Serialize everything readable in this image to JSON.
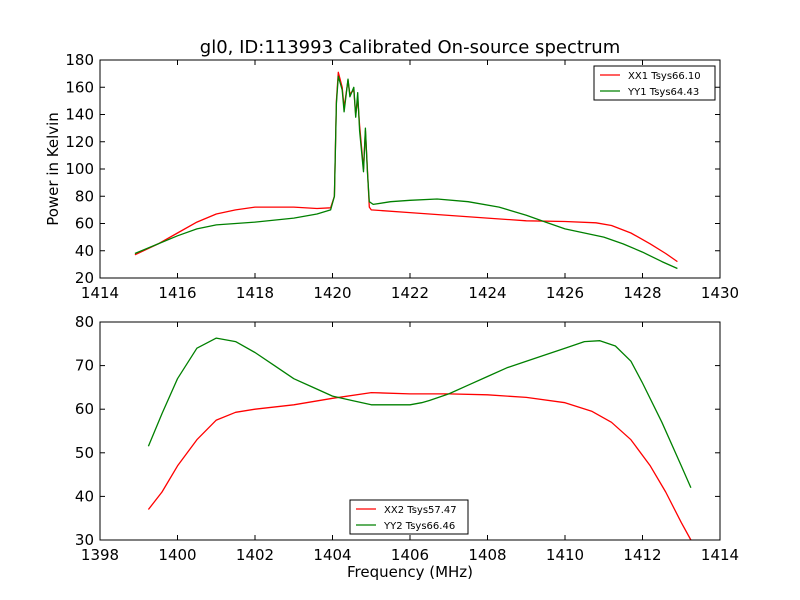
{
  "figure": {
    "title": "gl0, ID:113993 Calibrated On-source spectrum"
  },
  "chart_data": [
    {
      "type": "line",
      "title": "gl0, ID:113993 Calibrated On-source spectrum",
      "xlabel": "",
      "ylabel": "Power in Kelvin",
      "xlim": [
        1414,
        1430
      ],
      "ylim": [
        20,
        180
      ],
      "xticks": [
        1414,
        1416,
        1418,
        1420,
        1422,
        1424,
        1426,
        1428,
        1430
      ],
      "yticks": [
        20,
        40,
        60,
        80,
        100,
        120,
        140,
        160,
        180
      ],
      "legend_position": "top-right",
      "series": [
        {
          "name": "XX1 Tsys66.10",
          "color": "#ff0000",
          "points": [
            [
              1414.9,
              37
            ],
            [
              1415.5,
              45
            ],
            [
              1416,
              53
            ],
            [
              1416.5,
              61
            ],
            [
              1417,
              67
            ],
            [
              1417.5,
              70
            ],
            [
              1418,
              72
            ],
            [
              1419,
              72
            ],
            [
              1419.6,
              71
            ],
            [
              1419.95,
              71.5
            ],
            [
              1420.05,
              80
            ],
            [
              1420.1,
              150
            ],
            [
              1420.15,
              171
            ],
            [
              1420.25,
              160
            ],
            [
              1420.3,
              145
            ],
            [
              1420.4,
              165
            ],
            [
              1420.45,
              155
            ],
            [
              1420.55,
              158
            ],
            [
              1420.6,
              140
            ],
            [
              1420.65,
              152
            ],
            [
              1420.7,
              132
            ],
            [
              1420.8,
              100
            ],
            [
              1420.85,
              128
            ],
            [
              1420.9,
              100
            ],
            [
              1420.95,
              72
            ],
            [
              1421,
              70
            ],
            [
              1422,
              68
            ],
            [
              1424,
              64
            ],
            [
              1425,
              62
            ],
            [
              1426,
              61.5
            ],
            [
              1426.8,
              60.5
            ],
            [
              1427.2,
              58.5
            ],
            [
              1427.7,
              53
            ],
            [
              1428.2,
              45
            ],
            [
              1428.6,
              38
            ],
            [
              1428.9,
              32
            ]
          ]
        },
        {
          "name": "YY1 Tsys64.43",
          "color": "#008000",
          "points": [
            [
              1414.9,
              38
            ],
            [
              1415.5,
              45
            ],
            [
              1416,
              51
            ],
            [
              1416.5,
              56
            ],
            [
              1417,
              59
            ],
            [
              1418,
              61
            ],
            [
              1419,
              64
            ],
            [
              1419.6,
              67
            ],
            [
              1419.95,
              70
            ],
            [
              1420.05,
              80
            ],
            [
              1420.1,
              148
            ],
            [
              1420.15,
              168
            ],
            [
              1420.25,
              158
            ],
            [
              1420.3,
              142
            ],
            [
              1420.4,
              166
            ],
            [
              1420.45,
              153
            ],
            [
              1420.55,
              160
            ],
            [
              1420.6,
              138
            ],
            [
              1420.65,
              156
            ],
            [
              1420.7,
              128
            ],
            [
              1420.8,
              98
            ],
            [
              1420.85,
              130
            ],
            [
              1420.9,
              98
            ],
            [
              1420.95,
              76
            ],
            [
              1421.05,
              74
            ],
            [
              1421.5,
              76
            ],
            [
              1422,
              77
            ],
            [
              1422.7,
              78
            ],
            [
              1423.5,
              76
            ],
            [
              1424.3,
              72
            ],
            [
              1425,
              66
            ],
            [
              1425.5,
              61
            ],
            [
              1426,
              56
            ],
            [
              1426.5,
              53
            ],
            [
              1427,
              50
            ],
            [
              1427.5,
              45
            ],
            [
              1428,
              39
            ],
            [
              1428.5,
              32
            ],
            [
              1428.9,
              27
            ]
          ]
        }
      ]
    },
    {
      "type": "line",
      "title": "",
      "xlabel": "Frequency (MHz)",
      "ylabel": "",
      "xlim": [
        1398,
        1414
      ],
      "ylim": [
        30,
        80
      ],
      "xticks": [
        1398,
        1400,
        1402,
        1404,
        1406,
        1408,
        1410,
        1412,
        1414
      ],
      "yticks": [
        30,
        40,
        50,
        60,
        70,
        80
      ],
      "legend_position": "lower-center",
      "series": [
        {
          "name": "XX2 Tsys57.47",
          "color": "#ff0000",
          "points": [
            [
              1399.25,
              37
            ],
            [
              1399.6,
              41
            ],
            [
              1400,
              47
            ],
            [
              1400.5,
              53
            ],
            [
              1401,
              57.5
            ],
            [
              1401.5,
              59.3
            ],
            [
              1402,
              60
            ],
            [
              1403,
              61
            ],
            [
              1404,
              62.5
            ],
            [
              1405,
              63.8
            ],
            [
              1406,
              63.5
            ],
            [
              1407,
              63.5
            ],
            [
              1408,
              63.3
            ],
            [
              1409,
              62.7
            ],
            [
              1410,
              61.5
            ],
            [
              1410.7,
              59.5
            ],
            [
              1411.2,
              57
            ],
            [
              1411.7,
              53
            ],
            [
              1412.2,
              47
            ],
            [
              1412.6,
              41
            ],
            [
              1413,
              34
            ],
            [
              1413.25,
              30
            ]
          ]
        },
        {
          "name": "YY2 Tsys66.46",
          "color": "#008000",
          "points": [
            [
              1399.25,
              51.5
            ],
            [
              1399.6,
              59
            ],
            [
              1400,
              67
            ],
            [
              1400.5,
              74
            ],
            [
              1401,
              76.3
            ],
            [
              1401.5,
              75.5
            ],
            [
              1402,
              73
            ],
            [
              1402.5,
              70
            ],
            [
              1403,
              67
            ],
            [
              1403.5,
              65
            ],
            [
              1404,
              63
            ],
            [
              1404.5,
              62
            ],
            [
              1405,
              61
            ],
            [
              1405.5,
              61
            ],
            [
              1406,
              61
            ],
            [
              1406.3,
              61.5
            ],
            [
              1406.5,
              62
            ],
            [
              1407,
              63.5
            ],
            [
              1407.5,
              65.5
            ],
            [
              1408,
              67.5
            ],
            [
              1408.5,
              69.5
            ],
            [
              1409,
              71
            ],
            [
              1409.5,
              72.5
            ],
            [
              1410,
              74
            ],
            [
              1410.5,
              75.5
            ],
            [
              1410.9,
              75.7
            ],
            [
              1411.3,
              74.5
            ],
            [
              1411.7,
              71
            ],
            [
              1412,
              66
            ],
            [
              1412.5,
              57
            ],
            [
              1413,
              47
            ],
            [
              1413.25,
              42
            ]
          ]
        }
      ]
    }
  ]
}
